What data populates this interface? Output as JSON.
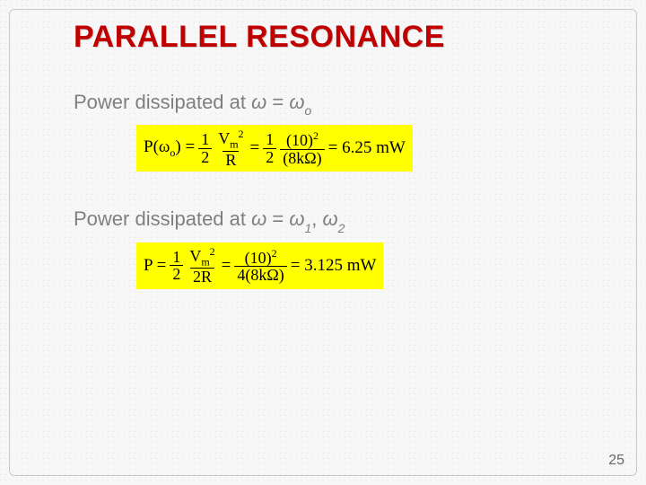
{
  "slide": {
    "title": "PARALLEL RESONANCE",
    "title_color": "#c00000",
    "title_fontsize": 34,
    "background_color": "#f7f7f7",
    "halftone_dot_color": "#aaaaaa",
    "caption_color": "#7f7f7f",
    "caption_fontsize": 22,
    "page_number": "25"
  },
  "sections": [
    {
      "caption_prefix": "Power dissipated at ",
      "omega_lhs": "ω",
      "equals": " = ",
      "omega_rhs": "ω",
      "omega_rhs_sub": "o",
      "equation": {
        "highlight_color": "#ffff00",
        "text_color": "#000000",
        "font_family": "Times New Roman",
        "fontsize": 19,
        "lhs": "P(ω",
        "lhs_sub": "o",
        "lhs_close": ") = ",
        "frac1_num": "1",
        "frac1_den": "2",
        "frac2_num_pre": "V",
        "frac2_num_sub": "m",
        "frac2_num_sup": "2",
        "frac2_den": "R",
        "eq_mid": " = ",
        "frac3_num": "1",
        "frac3_den": "2",
        "frac4_num_pre": "(10)",
        "frac4_num_sup": "2",
        "frac4_den": "(8kΩ)",
        "result": " = 6.25 mW"
      }
    },
    {
      "caption_prefix": "Power dissipated at ",
      "omega_lhs": "ω",
      "equals": " = ",
      "omega_rhs1": "ω",
      "omega_rhs1_sub": "1",
      "comma": ", ",
      "omega_rhs2": "ω",
      "omega_rhs2_sub": "2",
      "equation": {
        "highlight_color": "#ffff00",
        "text_color": "#000000",
        "font_family": "Times New Roman",
        "fontsize": 19,
        "lhs": "P = ",
        "frac1_num": "1",
        "frac1_den": "2",
        "frac2_num_pre": "V",
        "frac2_num_sub": "m",
        "frac2_num_sup": "2",
        "frac2_den": "2R",
        "eq_mid": " = ",
        "frac4_num_pre": "(10)",
        "frac4_num_sup": "2",
        "frac4_den": "4(8kΩ)",
        "result": " = 3.125 mW"
      }
    }
  ]
}
